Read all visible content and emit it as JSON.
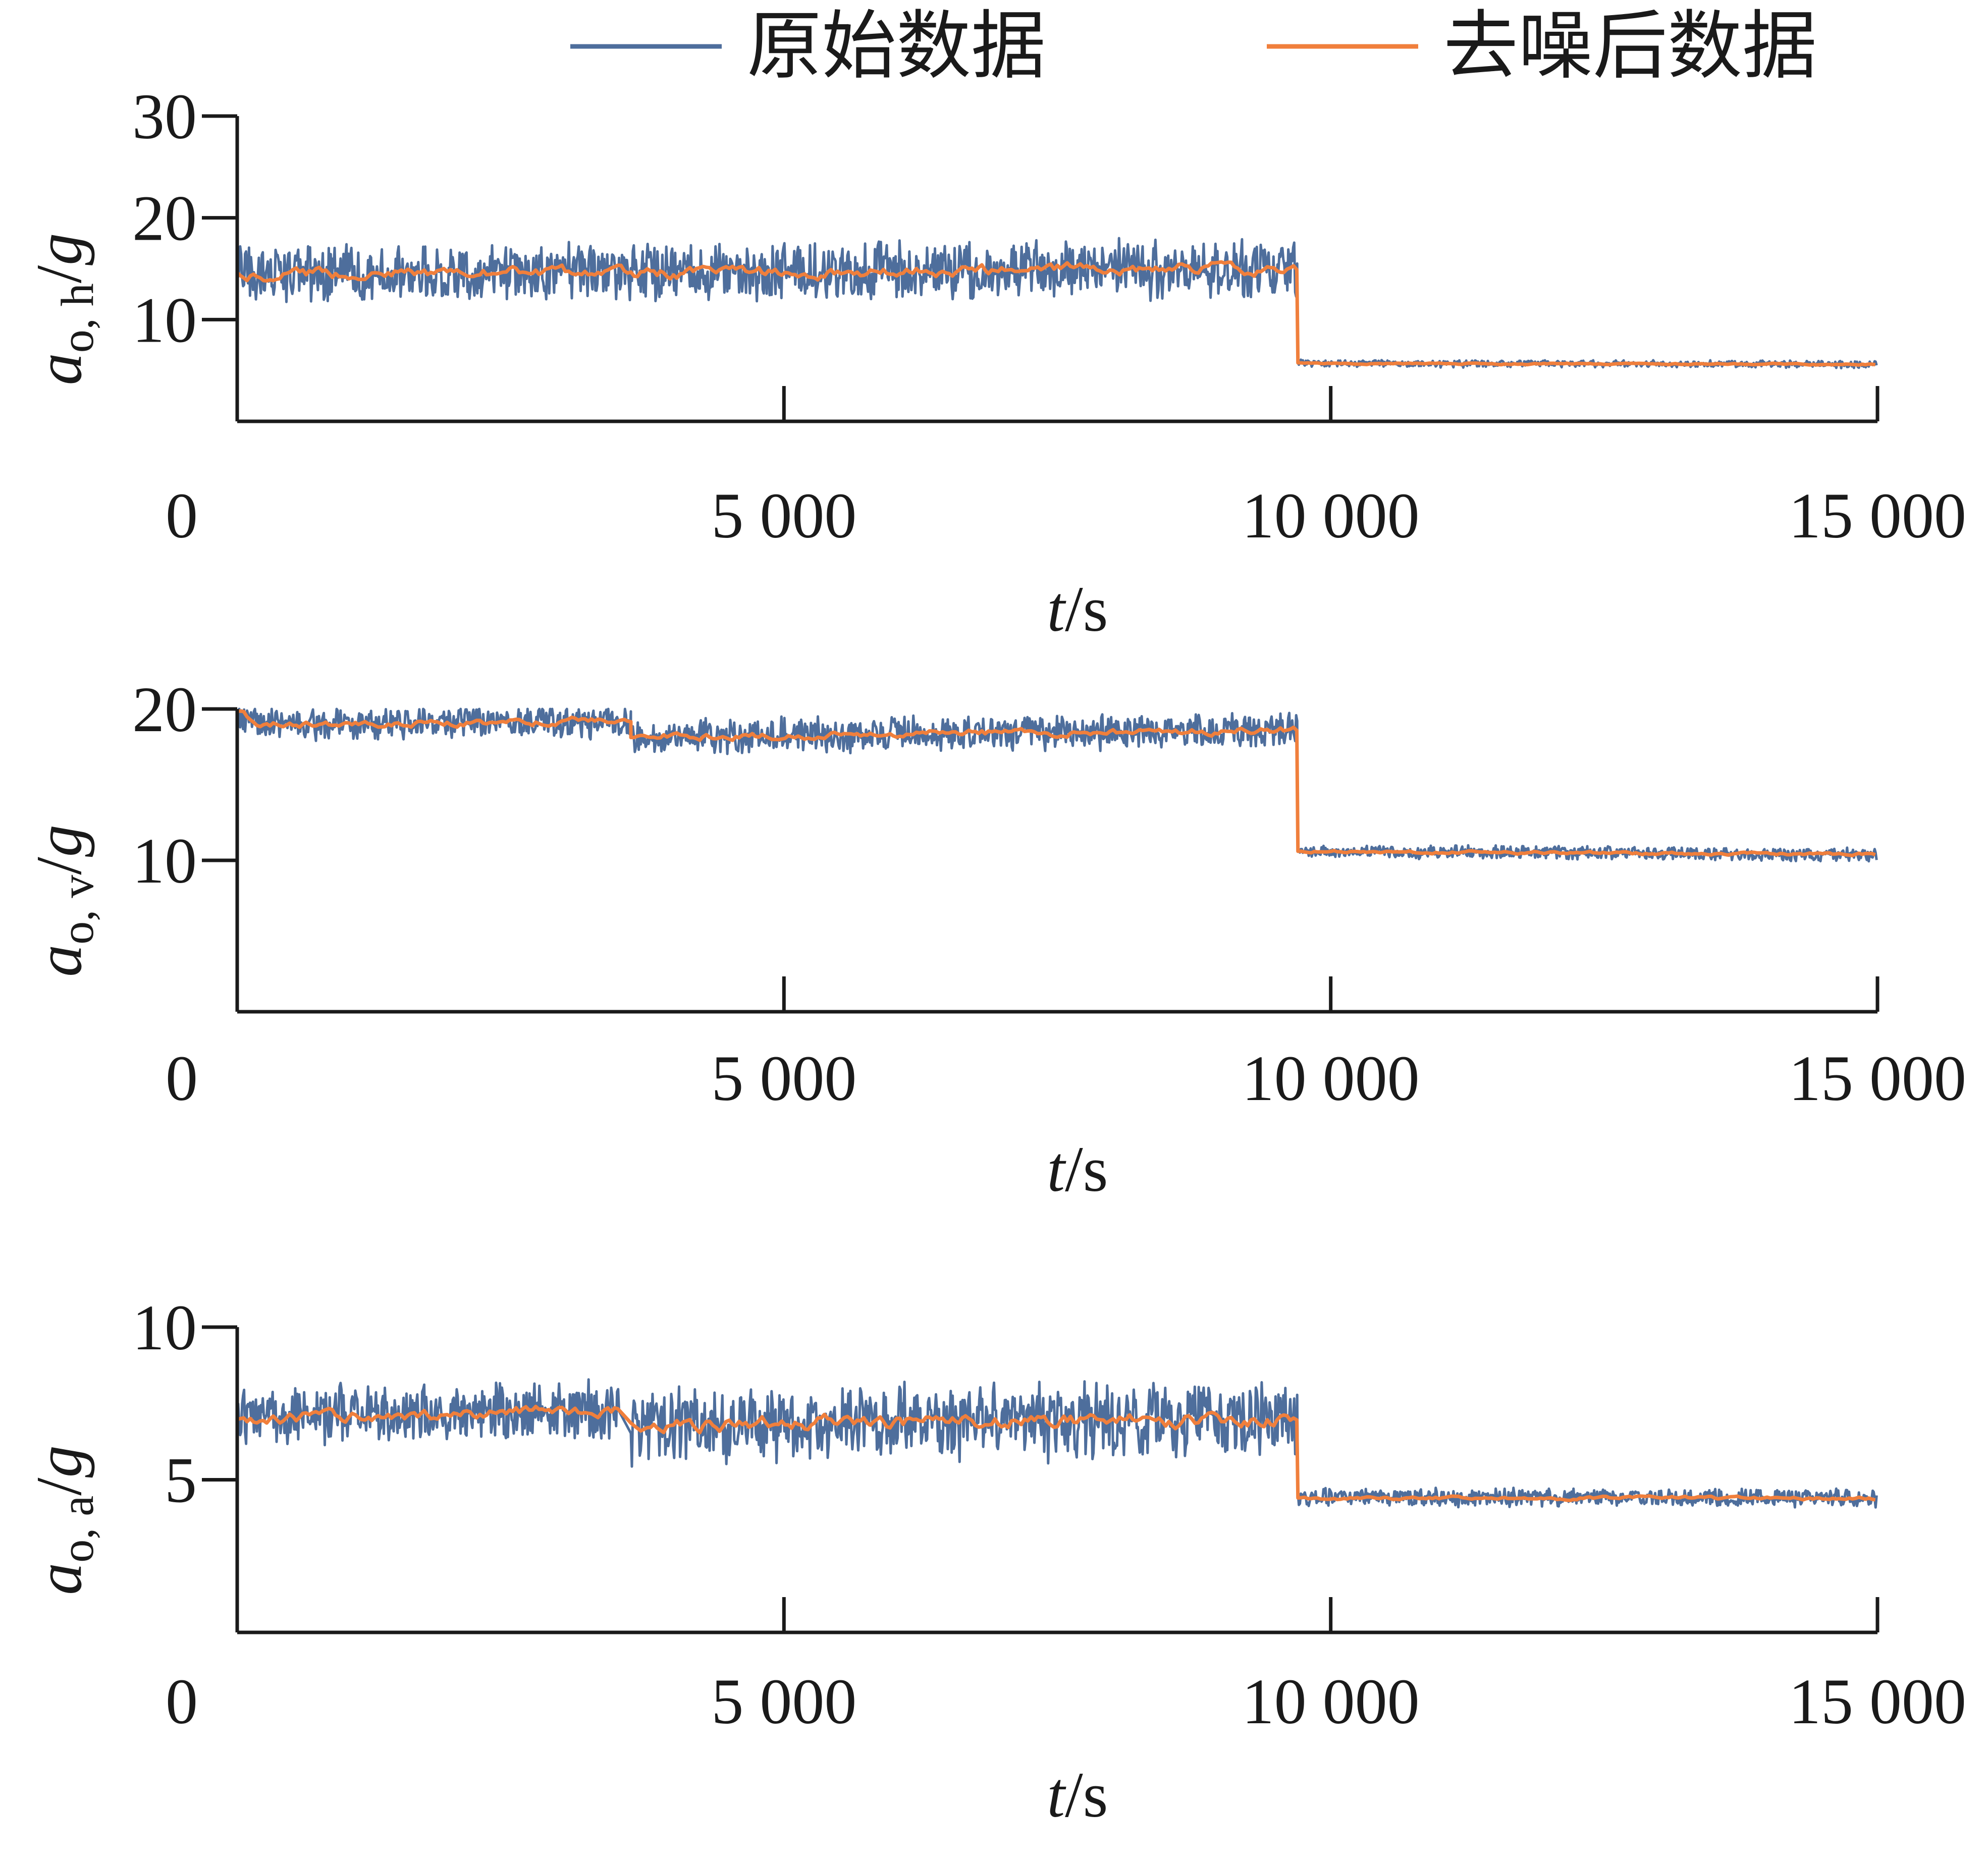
{
  "legend": {
    "raw": "原始数据",
    "denoised": "去噪后数据"
  },
  "colors": {
    "raw": "#4e6e9c",
    "denoised": "#f07f3c",
    "axis": "#1a1a1a"
  },
  "chart_data": [
    {
      "type": "line",
      "ylabel": {
        "symbol": "a",
        "subscript": "o, h",
        "suffix": "/g"
      },
      "xlabel": {
        "symbol": "t",
        "suffix": "/s"
      },
      "xlim": [
        0,
        15000
      ],
      "ylim": [
        0,
        30
      ],
      "x_ticks": [
        0,
        5000,
        10000,
        15000
      ],
      "x_tick_labels": [
        "0",
        "5 000",
        "10 000",
        "15 000"
      ],
      "y_ticks": [
        10,
        20,
        30
      ],
      "y_tick_labels": [
        "10",
        "20",
        "30"
      ],
      "series": [
        {
          "name": "原始数据",
          "step_time": 9700,
          "segments": [
            {
              "x": [
                0,
                2000,
                4000,
                6000,
                8000,
                9700
              ],
              "mean": [
                14.5,
                14.6,
                14.6,
                14.8,
                15.0,
                15.0
              ],
              "noise_amplitude": 3.2
            },
            {
              "x": [
                9700,
                15000
              ],
              "mean": [
                5.7,
                5.6
              ],
              "noise_amplitude": 0.4
            }
          ]
        },
        {
          "name": "去噪后数据",
          "step_time": 9700,
          "segments": [
            {
              "x": [
                0,
                2000,
                4000,
                6000,
                8000,
                9700
              ],
              "mean": [
                14.5,
                14.6,
                14.6,
                14.8,
                15.0,
                15.0
              ],
              "noise_amplitude": 0.6
            },
            {
              "x": [
                9700,
                15000
              ],
              "mean": [
                5.7,
                5.6
              ],
              "noise_amplitude": 0.08
            }
          ]
        }
      ]
    },
    {
      "type": "line",
      "ylabel": {
        "symbol": "a",
        "subscript": "o, v",
        "suffix": "/g"
      },
      "xlabel": {
        "symbol": "t",
        "suffix": "/s"
      },
      "xlim": [
        0,
        15000
      ],
      "ylim": [
        0,
        20
      ],
      "x_ticks": [
        0,
        5000,
        10000,
        15000
      ],
      "x_tick_labels": [
        "0",
        "5 000",
        "10 000",
        "15 000"
      ],
      "y_ticks": [
        10,
        20
      ],
      "y_tick_labels": [
        "10",
        "20"
      ],
      "series": [
        {
          "name": "原始数据",
          "step_time": 9700,
          "segments": [
            {
              "x": [
                0,
                200,
                3600
              ],
              "mean": [
                20.0,
                19.0,
                19.2
              ],
              "noise_amplitude": 1.2,
              "cap": 20
            },
            {
              "x": [
                3600,
                9700
              ],
              "mean": [
                18.2,
                18.6
              ],
              "noise_amplitude": 1.3,
              "cap": 20
            },
            {
              "x": [
                9700,
                15000
              ],
              "mean": [
                10.6,
                10.4
              ],
              "noise_amplitude": 0.5
            }
          ]
        },
        {
          "name": "去噪后数据",
          "step_time": 9700,
          "segments": [
            {
              "x": [
                0,
                200,
                3600
              ],
              "mean": [
                20.0,
                19.0,
                19.2
              ],
              "noise_amplitude": 0.25
            },
            {
              "x": [
                3600,
                9700
              ],
              "mean": [
                18.2,
                18.6
              ],
              "noise_amplitude": 0.25
            },
            {
              "x": [
                9700,
                15000
              ],
              "mean": [
                10.6,
                10.4
              ],
              "noise_amplitude": 0.1
            }
          ]
        }
      ]
    },
    {
      "type": "line",
      "ylabel": {
        "symbol": "a",
        "subscript": "o, a",
        "suffix": "/g"
      },
      "xlabel": {
        "symbol": "t",
        "suffix": "/s"
      },
      "xlim": [
        0,
        15000
      ],
      "ylim": [
        0,
        10
      ],
      "x_ticks": [
        0,
        5000,
        10000,
        15000
      ],
      "x_tick_labels": [
        "0",
        "5 000",
        "10 000",
        "15 000"
      ],
      "y_ticks": [
        5,
        10
      ],
      "y_tick_labels": [
        "5",
        "10"
      ],
      "series": [
        {
          "name": "原始数据",
          "step_time": 9700,
          "segments": [
            {
              "x": [
                0,
                3500
              ],
              "mean": [
                7.0,
                7.3
              ],
              "noise_amplitude": 1.1
            },
            {
              "x": [
                3600,
                9700
              ],
              "mean": [
                6.8,
                7.0
              ],
              "noise_amplitude": 1.4
            },
            {
              "x": [
                9700,
                15000
              ],
              "mean": [
                4.4,
                4.4
              ],
              "noise_amplitude": 0.35
            }
          ]
        },
        {
          "name": "去噪后数据",
          "step_time": 9700,
          "segments": [
            {
              "x": [
                0,
                3500
              ],
              "mean": [
                7.0,
                7.3
              ],
              "noise_amplitude": 0.2
            },
            {
              "x": [
                3600,
                9700
              ],
              "mean": [
                6.8,
                7.0
              ],
              "noise_amplitude": 0.25
            },
            {
              "x": [
                9700,
                15000
              ],
              "mean": [
                4.4,
                4.4
              ],
              "noise_amplitude": 0.06
            }
          ]
        }
      ]
    }
  ]
}
